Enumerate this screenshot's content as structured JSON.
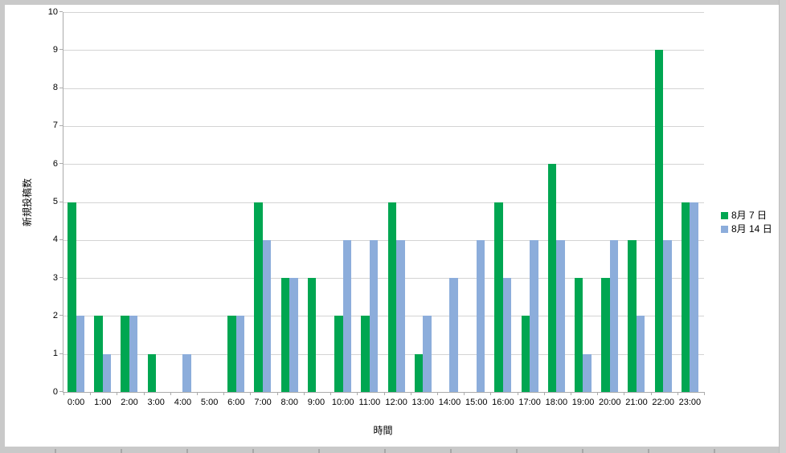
{
  "chart_data": {
    "type": "bar",
    "title": "",
    "xlabel": "時間",
    "ylabel": "新規投稿数",
    "ylim": [
      0,
      10
    ],
    "ytick_interval": 1,
    "grid": true,
    "legend_position": "right",
    "categories": [
      "0:00",
      "1:00",
      "2:00",
      "3:00",
      "4:00",
      "5:00",
      "6:00",
      "7:00",
      "8:00",
      "9:00",
      "10:00",
      "11:00",
      "12:00",
      "13:00",
      "14:00",
      "15:00",
      "16:00",
      "17:00",
      "18:00",
      "19:00",
      "20:00",
      "21:00",
      "22:00",
      "23:00"
    ],
    "series": [
      {
        "name": "8月 7 日",
        "color": "#00A651",
        "values": [
          5,
          2,
          2,
          1,
          0,
          0,
          2,
          5,
          3,
          3,
          2,
          2,
          5,
          1,
          0,
          0,
          5,
          2,
          6,
          3,
          3,
          4,
          9,
          5
        ]
      },
      {
        "name": "8月 14 日",
        "color": "#8CADDB",
        "values": [
          2,
          1,
          2,
          0,
          1,
          0,
          2,
          4,
          3,
          0,
          4,
          4,
          4,
          2,
          3,
          4,
          3,
          4,
          4,
          1,
          4,
          2,
          4,
          5
        ]
      }
    ],
    "colors": {
      "grid": "#D4D4D4",
      "axis": "#ABABAB",
      "plot_background": "#FFFFFF",
      "frame": "#C9C9C9"
    }
  }
}
